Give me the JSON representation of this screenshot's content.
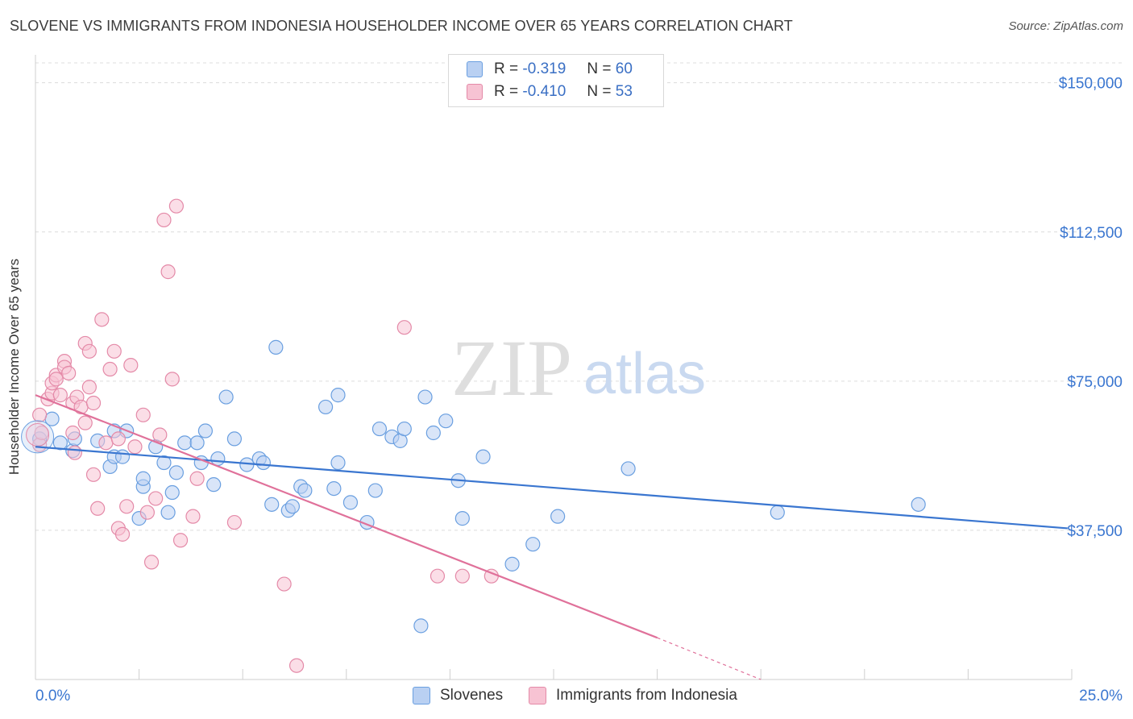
{
  "title": "SLOVENE VS IMMIGRANTS FROM INDONESIA HOUSEHOLDER INCOME OVER 65 YEARS CORRELATION CHART",
  "source": "Source: ZipAtlas.com",
  "watermark": {
    "zip": "ZIP",
    "atlas": "atlas"
  },
  "legend": {
    "r_label": "R =",
    "n_label": "N =",
    "series": [
      {
        "name": "Slovenes",
        "r": "-0.319",
        "n": "60",
        "color": "#6a9fe0",
        "fill": "#b9d0f2"
      },
      {
        "name": "Immigrants from Indonesia",
        "r": "-0.410",
        "n": "53",
        "color": "#e48aa8",
        "fill": "#f7c3d3"
      }
    ]
  },
  "chart_data": {
    "type": "scatter",
    "title": "SLOVENE VS IMMIGRANTS FROM INDONESIA HOUSEHOLDER INCOME OVER 65 YEARS CORRELATION CHART",
    "xlabel": "",
    "ylabel": "Householder Income Over 65 years",
    "xlim": [
      0,
      25
    ],
    "ylim": [
      0,
      155000
    ],
    "x_tick_labels": [
      "0.0%",
      "25.0%"
    ],
    "y_ticks": [
      37500,
      75000,
      112500,
      150000
    ],
    "y_tick_labels": [
      "$37,500",
      "$75,000",
      "$112,500",
      "$150,000"
    ],
    "grid": true,
    "series": [
      {
        "name": "Slovenes",
        "color": "#3a76d0",
        "points": [
          [
            0.1,
            60500
          ],
          [
            0.4,
            65500
          ],
          [
            0.6,
            59500
          ],
          [
            0.9,
            57500
          ],
          [
            0.95,
            60500
          ],
          [
            1.5,
            60000
          ],
          [
            1.8,
            53500
          ],
          [
            1.9,
            62500
          ],
          [
            1.9,
            56000
          ],
          [
            2.2,
            62500
          ],
          [
            2.1,
            56000
          ],
          [
            2.6,
            48500
          ],
          [
            2.5,
            40500
          ],
          [
            2.6,
            50500
          ],
          [
            2.9,
            58500
          ],
          [
            3.1,
            54500
          ],
          [
            3.2,
            42000
          ],
          [
            3.3,
            47000
          ],
          [
            3.4,
            52000
          ],
          [
            3.6,
            59500
          ],
          [
            3.9,
            59500
          ],
          [
            4.0,
            54500
          ],
          [
            4.1,
            62500
          ],
          [
            4.3,
            49000
          ],
          [
            4.4,
            55500
          ],
          [
            4.6,
            71000
          ],
          [
            4.8,
            60500
          ],
          [
            5.1,
            54000
          ],
          [
            5.4,
            55500
          ],
          [
            5.5,
            54500
          ],
          [
            5.7,
            44000
          ],
          [
            5.8,
            83500
          ],
          [
            6.1,
            42500
          ],
          [
            6.2,
            43500
          ],
          [
            6.4,
            48500
          ],
          [
            6.5,
            47500
          ],
          [
            7.0,
            68500
          ],
          [
            7.2,
            48000
          ],
          [
            7.3,
            71500
          ],
          [
            7.3,
            54500
          ],
          [
            7.6,
            44500
          ],
          [
            8.0,
            39500
          ],
          [
            8.2,
            47500
          ],
          [
            8.3,
            63000
          ],
          [
            8.6,
            61000
          ],
          [
            8.8,
            60000
          ],
          [
            8.9,
            63000
          ],
          [
            9.3,
            13500
          ],
          [
            9.4,
            71000
          ],
          [
            9.6,
            62000
          ],
          [
            9.9,
            65000
          ],
          [
            10.2,
            50000
          ],
          [
            10.3,
            40500
          ],
          [
            10.8,
            56000
          ],
          [
            11.5,
            29000
          ],
          [
            12.0,
            34000
          ],
          [
            12.6,
            41000
          ],
          [
            14.3,
            53000
          ],
          [
            17.9,
            42000
          ],
          [
            21.3,
            44000
          ]
        ],
        "trend": {
          "x": [
            0,
            24.9
          ],
          "y": [
            58500,
            38000
          ]
        }
      },
      {
        "name": "Immigrants from Indonesia",
        "color": "#e0719a",
        "points": [
          [
            0.1,
            59000
          ],
          [
            0.1,
            66500
          ],
          [
            0.15,
            62000
          ],
          [
            0.3,
            70500
          ],
          [
            0.4,
            72000
          ],
          [
            0.4,
            74500
          ],
          [
            0.5,
            76500
          ],
          [
            0.5,
            75500
          ],
          [
            0.6,
            71500
          ],
          [
            0.7,
            80000
          ],
          [
            0.7,
            78500
          ],
          [
            0.8,
            77000
          ],
          [
            0.9,
            69500
          ],
          [
            0.9,
            62000
          ],
          [
            0.95,
            57000
          ],
          [
            1.0,
            71000
          ],
          [
            1.1,
            68500
          ],
          [
            1.2,
            64500
          ],
          [
            1.2,
            84500
          ],
          [
            1.3,
            82500
          ],
          [
            1.3,
            73500
          ],
          [
            1.4,
            69500
          ],
          [
            1.4,
            51500
          ],
          [
            1.5,
            43000
          ],
          [
            1.6,
            90500
          ],
          [
            1.7,
            59500
          ],
          [
            1.8,
            78000
          ],
          [
            1.9,
            82500
          ],
          [
            2.0,
            60500
          ],
          [
            2.0,
            38000
          ],
          [
            2.1,
            36500
          ],
          [
            2.2,
            43500
          ],
          [
            2.3,
            79000
          ],
          [
            2.4,
            58500
          ],
          [
            2.6,
            66500
          ],
          [
            2.7,
            42000
          ],
          [
            2.8,
            29500
          ],
          [
            2.9,
            45500
          ],
          [
            3.0,
            61500
          ],
          [
            3.1,
            115500
          ],
          [
            3.2,
            102500
          ],
          [
            3.3,
            75500
          ],
          [
            3.4,
            119000
          ],
          [
            3.5,
            35000
          ],
          [
            3.8,
            41000
          ],
          [
            3.9,
            50500
          ],
          [
            4.8,
            39500
          ],
          [
            6.0,
            24000
          ],
          [
            6.3,
            3500
          ],
          [
            8.9,
            88500
          ],
          [
            9.7,
            26000
          ],
          [
            10.3,
            26000
          ],
          [
            11.0,
            26000
          ]
        ],
        "trend": {
          "x": [
            0,
            15
          ],
          "y": [
            71500,
            10500
          ]
        },
        "trend_extension": {
          "x": [
            15,
            17.5
          ],
          "y": [
            10500,
            0
          ]
        }
      }
    ]
  }
}
